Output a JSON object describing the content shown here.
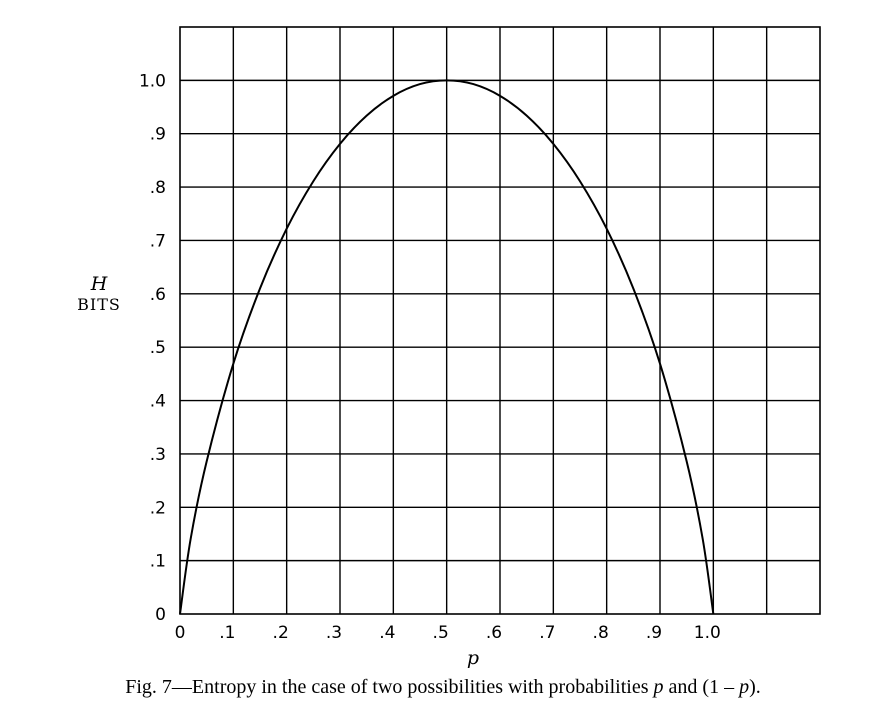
{
  "chart_data": {
    "type": "line",
    "xlabel": "p",
    "ylabel": "H",
    "ylabel_unit": "BITS",
    "xlim": [
      0,
      1.2
    ],
    "ylim": [
      0,
      1.1
    ],
    "grid": true,
    "x_ticks": [
      0,
      0.1,
      0.2,
      0.3,
      0.4,
      0.5,
      0.6,
      0.7,
      0.8,
      0.9,
      1.0
    ],
    "x_tick_labels": [
      "0",
      ".1",
      ".2",
      ".3",
      ".4",
      ".5",
      ".6",
      ".7",
      ".8",
      ".9",
      "1.0"
    ],
    "y_ticks": [
      0,
      0.1,
      0.2,
      0.3,
      0.4,
      0.5,
      0.6,
      0.7,
      0.8,
      0.9,
      1.0
    ],
    "y_tick_labels": [
      "0",
      ".1",
      ".2",
      ".3",
      ".4",
      ".5",
      ".6",
      ".7",
      ".8",
      ".9",
      "1.0"
    ],
    "series": [
      {
        "x": [
          0,
          0.02,
          0.05,
          0.1,
          0.15,
          0.2,
          0.25,
          0.3,
          0.35,
          0.4,
          0.45,
          0.5,
          0.55,
          0.6,
          0.65,
          0.7,
          0.75,
          0.8,
          0.85,
          0.9,
          0.95,
          0.98,
          1.0
        ],
        "y": [
          0,
          0.141,
          0.286,
          0.469,
          0.61,
          0.722,
          0.811,
          0.881,
          0.934,
          0.971,
          0.993,
          1.0,
          0.993,
          0.971,
          0.934,
          0.881,
          0.811,
          0.722,
          0.61,
          0.469,
          0.286,
          0.141,
          0
        ]
      }
    ]
  },
  "caption": {
    "prefix": "Fig. 7—Entropy in the case of two possibilities with probabilities ",
    "var_p": "p",
    "mid": " and ",
    "expr_open": "(1 – ",
    "expr_p": "p",
    "expr_close": ")."
  }
}
